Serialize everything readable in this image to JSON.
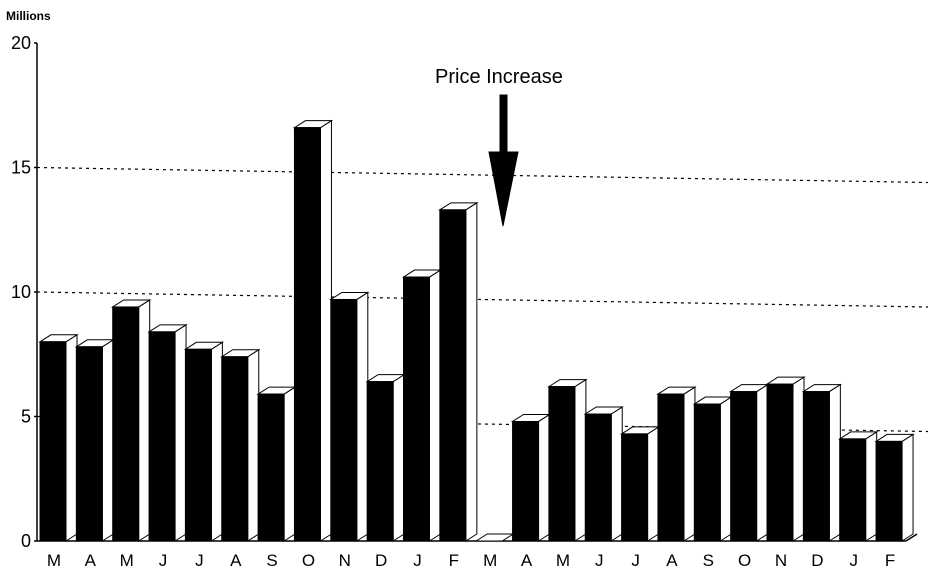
{
  "chart_data": {
    "type": "bar",
    "unit_label": "Millions",
    "y_ticks": [
      0,
      5,
      10,
      15,
      20
    ],
    "ylim": [
      0,
      20
    ],
    "grid": "dashed horizontal at 5, 10, 15",
    "categories": [
      "M",
      "A",
      "M",
      "J",
      "J",
      "A",
      "S",
      "O",
      "N",
      "D",
      "J",
      "F",
      "M",
      "A",
      "M",
      "J",
      "J",
      "A",
      "S",
      "O",
      "N",
      "D",
      "J",
      "F"
    ],
    "values": [
      8.0,
      7.8,
      9.4,
      8.4,
      7.7,
      7.4,
      5.9,
      16.6,
      9.7,
      6.4,
      10.6,
      13.3,
      0.0,
      4.8,
      6.2,
      5.1,
      4.3,
      5.9,
      5.5,
      6.0,
      6.3,
      6.0,
      4.1,
      4.0
    ],
    "annotation": {
      "text": "Price Increase",
      "position": "arrow pointing down between F and M"
    },
    "style": "3D black bars with white top and side faces"
  }
}
